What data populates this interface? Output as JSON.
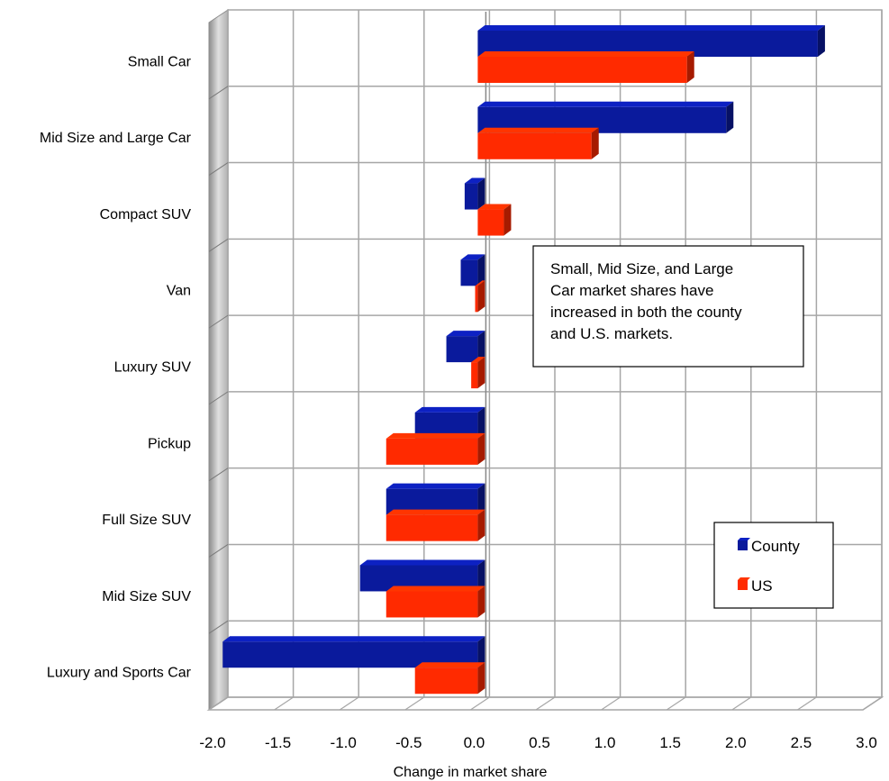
{
  "chart_data": {
    "type": "bar",
    "orientation": "horizontal",
    "title": "",
    "xlabel": "Change in market share",
    "ylabel": "",
    "xlim": [
      -2.0,
      3.0
    ],
    "xticks": [
      "-2.0",
      "-1.5",
      "-1.0",
      "-0.5",
      "0.0",
      "0.5",
      "1.0",
      "1.5",
      "2.0",
      "2.5",
      "3.0"
    ],
    "grid": true,
    "legend_position": "bottom-right",
    "categories": [
      "Small Car",
      "Mid Size and Large Car",
      "Compact SUV",
      "Van",
      "Luxury SUV",
      "Pickup",
      "Full Size SUV",
      "Mid Size SUV",
      "Luxury and Sports Car"
    ],
    "series": [
      {
        "name": "County",
        "color": "#0a1a9c",
        "values": [
          2.6,
          1.9,
          -0.1,
          -0.13,
          -0.24,
          -0.48,
          -0.7,
          -0.9,
          -1.95
        ]
      },
      {
        "name": "US",
        "color": "#ff2a00",
        "values": [
          1.6,
          0.87,
          0.2,
          -0.02,
          -0.05,
          -0.7,
          -0.7,
          -0.7,
          -0.48
        ]
      }
    ],
    "annotation": "Small, Mid Size, and Large Car market shares have increased in both the county and U.S. markets.",
    "annotation_lines": [
      "Small, Mid Size, and Large",
      "Car market shares have",
      "increased in both the county",
      "and U.S. markets."
    ]
  }
}
